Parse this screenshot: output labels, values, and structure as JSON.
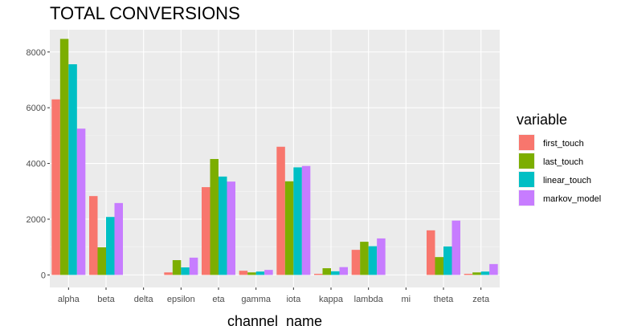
{
  "chart_data": {
    "type": "bar",
    "title": "TOTAL CONVERSIONS",
    "xlabel": "channel_name",
    "ylabel": "",
    "ylim": [
      0,
      8800
    ],
    "yticks": [
      0,
      2000,
      4000,
      6000,
      8000
    ],
    "ytick_labels": [
      "0",
      "2000",
      "4000",
      "6000",
      "8000"
    ],
    "grid": true,
    "legend": {
      "title": "variable",
      "position": "right"
    },
    "categories": [
      "alpha",
      "beta",
      "delta",
      "epsilon",
      "eta",
      "gamma",
      "iota",
      "kappa",
      "lambda",
      "mi",
      "theta",
      "zeta"
    ],
    "series": [
      {
        "name": "first_touch",
        "color": "#F8766D",
        "values": [
          6300,
          2830,
          0,
          90,
          3150,
          150,
          4600,
          40,
          900,
          0,
          1600,
          40
        ]
      },
      {
        "name": "last_touch",
        "color": "#7CAE00",
        "values": [
          8470,
          990,
          0,
          530,
          4160,
          90,
          3360,
          240,
          1190,
          0,
          640,
          90
        ]
      },
      {
        "name": "linear_touch",
        "color": "#00BFC4",
        "values": [
          7560,
          2080,
          0,
          270,
          3530,
          120,
          3860,
          130,
          1030,
          0,
          1020,
          120
        ]
      },
      {
        "name": "markov_model",
        "color": "#C77CFF",
        "values": [
          5250,
          2580,
          0,
          620,
          3350,
          180,
          3910,
          280,
          1310,
          0,
          1950,
          390
        ]
      }
    ],
    "colors": {
      "panel_bg": "#EBEBEB",
      "grid_major": "#FFFFFF",
      "tick_text": "#4D4D4D"
    }
  }
}
